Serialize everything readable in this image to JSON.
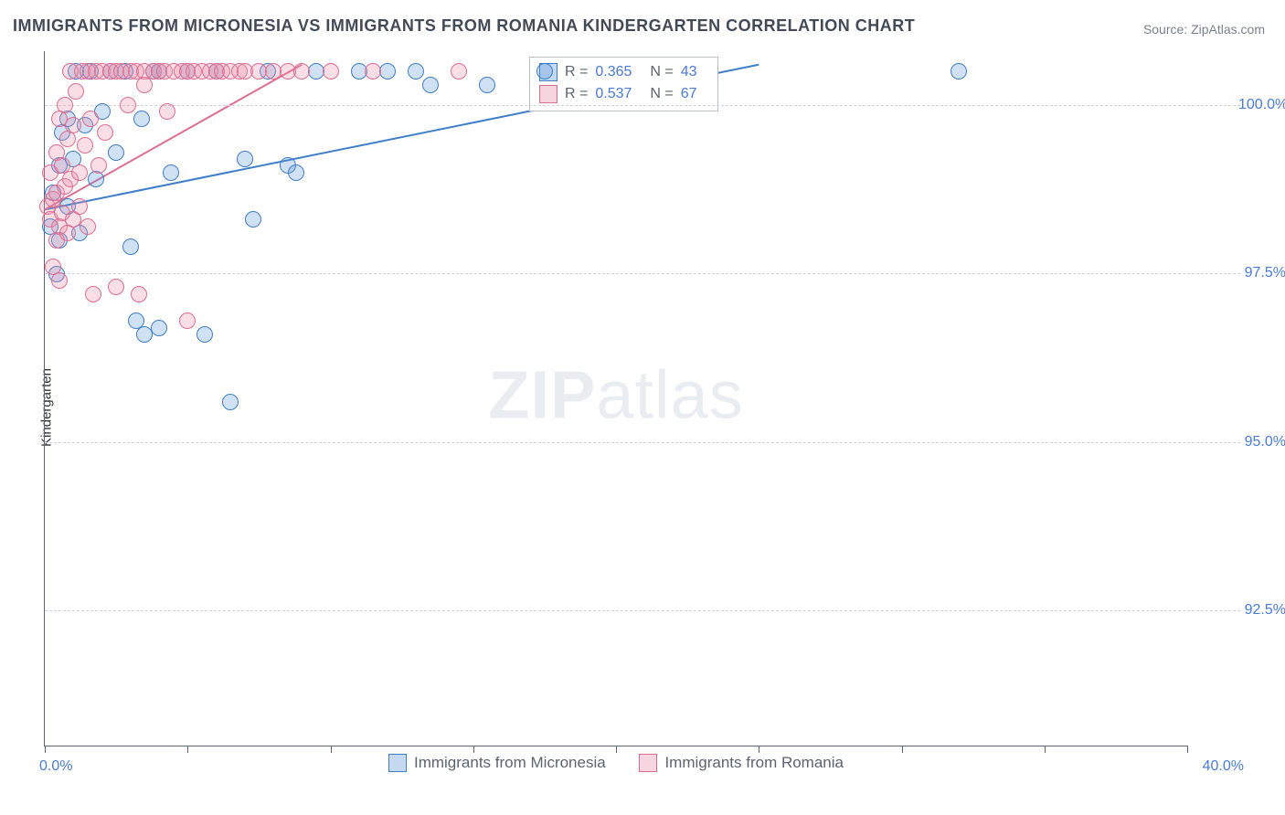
{
  "title": "IMMIGRANTS FROM MICRONESIA VS IMMIGRANTS FROM ROMANIA KINDERGARTEN CORRELATION CHART",
  "source_label": "Source: ZipAtlas.com",
  "watermark_bold": "ZIP",
  "watermark_rest": "atlas",
  "ylabel": "Kindergarten",
  "chart": {
    "type": "scatter",
    "background_color": "#ffffff",
    "grid_color": "#cfd3da",
    "grid_dash": true,
    "axis_color": "#5b6470",
    "tick_label_color": "#4a7bd6",
    "tick_label_fontsize": 16,
    "title_fontsize": 18,
    "title_color": "#434a57",
    "xlim": [
      0.0,
      40.0
    ],
    "ylim": [
      90.5,
      100.8
    ],
    "x_ticks": [
      0,
      5,
      10,
      15,
      20,
      25,
      30,
      35,
      40
    ],
    "x_tick_labels_shown": {
      "min": "0.0%",
      "max": "40.0%"
    },
    "y_grid": [
      {
        "value": 92.5,
        "label": "92.5%"
      },
      {
        "value": 95.0,
        "label": "95.0%"
      },
      {
        "value": 97.5,
        "label": "97.5%"
      },
      {
        "value": 100.0,
        "label": "100.0%"
      }
    ],
    "marker_radius": 8,
    "marker_stroke": 1.5,
    "marker_fill_opacity": 0.28
  },
  "series": [
    {
      "key": "micronesia",
      "label": "Immigrants from Micronesia",
      "color": "#5a93d6",
      "stroke": "#3f7ec9",
      "R": "0.365",
      "N": "43",
      "trend": {
        "x1": 0.0,
        "y1": 98.45,
        "x2": 25.0,
        "y2": 100.6,
        "width": 2
      },
      "points": [
        [
          0.2,
          98.2
        ],
        [
          0.3,
          98.7
        ],
        [
          0.4,
          97.5
        ],
        [
          0.5,
          99.1
        ],
        [
          0.5,
          98.0
        ],
        [
          0.6,
          99.6
        ],
        [
          0.8,
          98.5
        ],
        [
          0.8,
          99.8
        ],
        [
          1.0,
          99.2
        ],
        [
          1.1,
          100.5
        ],
        [
          1.2,
          98.1
        ],
        [
          1.4,
          99.7
        ],
        [
          1.6,
          100.5
        ],
        [
          1.8,
          98.9
        ],
        [
          2.0,
          99.9
        ],
        [
          2.3,
          100.5
        ],
        [
          2.5,
          99.3
        ],
        [
          2.8,
          100.5
        ],
        [
          3.0,
          97.9
        ],
        [
          3.2,
          96.8
        ],
        [
          3.4,
          99.8
        ],
        [
          3.5,
          96.6
        ],
        [
          3.8,
          100.5
        ],
        [
          4.0,
          100.5
        ],
        [
          4.0,
          96.7
        ],
        [
          4.4,
          99.0
        ],
        [
          5.0,
          100.5
        ],
        [
          5.6,
          96.6
        ],
        [
          6.0,
          100.5
        ],
        [
          6.5,
          95.6
        ],
        [
          7.0,
          99.2
        ],
        [
          7.3,
          98.3
        ],
        [
          7.8,
          100.5
        ],
        [
          8.5,
          99.1
        ],
        [
          8.8,
          99.0
        ],
        [
          9.5,
          100.5
        ],
        [
          11.0,
          100.5
        ],
        [
          12.0,
          100.5
        ],
        [
          13.0,
          100.5
        ],
        [
          13.5,
          100.3
        ],
        [
          15.5,
          100.3
        ],
        [
          17.5,
          100.5
        ],
        [
          32.0,
          100.5
        ]
      ]
    },
    {
      "key": "romania",
      "label": "Immigrants from Romania",
      "color": "#e989a5",
      "stroke": "#de6e90",
      "R": "0.537",
      "N": "67",
      "trend": {
        "x1": 0.0,
        "y1": 98.45,
        "x2": 9.0,
        "y2": 100.6,
        "width": 2
      },
      "points": [
        [
          0.1,
          98.5
        ],
        [
          0.2,
          98.3
        ],
        [
          0.2,
          99.0
        ],
        [
          0.3,
          97.6
        ],
        [
          0.3,
          98.6
        ],
        [
          0.4,
          99.3
        ],
        [
          0.4,
          98.0
        ],
        [
          0.4,
          98.7
        ],
        [
          0.5,
          99.8
        ],
        [
          0.5,
          98.2
        ],
        [
          0.5,
          97.4
        ],
        [
          0.6,
          99.1
        ],
        [
          0.6,
          98.4
        ],
        [
          0.7,
          100.0
        ],
        [
          0.7,
          98.8
        ],
        [
          0.8,
          99.5
        ],
        [
          0.8,
          98.1
        ],
        [
          0.9,
          100.5
        ],
        [
          0.9,
          98.9
        ],
        [
          1.0,
          99.7
        ],
        [
          1.0,
          98.3
        ],
        [
          1.1,
          100.2
        ],
        [
          1.2,
          99.0
        ],
        [
          1.2,
          98.5
        ],
        [
          1.3,
          100.5
        ],
        [
          1.4,
          99.4
        ],
        [
          1.5,
          98.2
        ],
        [
          1.5,
          100.5
        ],
        [
          1.6,
          99.8
        ],
        [
          1.7,
          97.2
        ],
        [
          1.8,
          100.5
        ],
        [
          1.9,
          99.1
        ],
        [
          2.0,
          100.5
        ],
        [
          2.1,
          99.6
        ],
        [
          2.3,
          100.5
        ],
        [
          2.5,
          100.5
        ],
        [
          2.5,
          97.3
        ],
        [
          2.7,
          100.5
        ],
        [
          2.9,
          100.0
        ],
        [
          3.0,
          100.5
        ],
        [
          3.2,
          100.5
        ],
        [
          3.3,
          97.2
        ],
        [
          3.5,
          100.5
        ],
        [
          3.5,
          100.3
        ],
        [
          3.8,
          100.5
        ],
        [
          4.0,
          100.5
        ],
        [
          4.2,
          100.5
        ],
        [
          4.3,
          99.9
        ],
        [
          4.5,
          100.5
        ],
        [
          4.8,
          100.5
        ],
        [
          5.0,
          100.5
        ],
        [
          5.0,
          96.8
        ],
        [
          5.2,
          100.5
        ],
        [
          5.5,
          100.5
        ],
        [
          5.8,
          100.5
        ],
        [
          6.0,
          100.5
        ],
        [
          6.2,
          100.5
        ],
        [
          6.5,
          100.5
        ],
        [
          6.8,
          100.5
        ],
        [
          7.0,
          100.5
        ],
        [
          7.5,
          100.5
        ],
        [
          8.0,
          100.5
        ],
        [
          8.5,
          100.5
        ],
        [
          9.0,
          100.5
        ],
        [
          10.0,
          100.5
        ],
        [
          11.5,
          100.5
        ],
        [
          14.5,
          100.5
        ]
      ]
    }
  ],
  "legend_top": {
    "R_label": "R =",
    "N_label": "N ="
  }
}
